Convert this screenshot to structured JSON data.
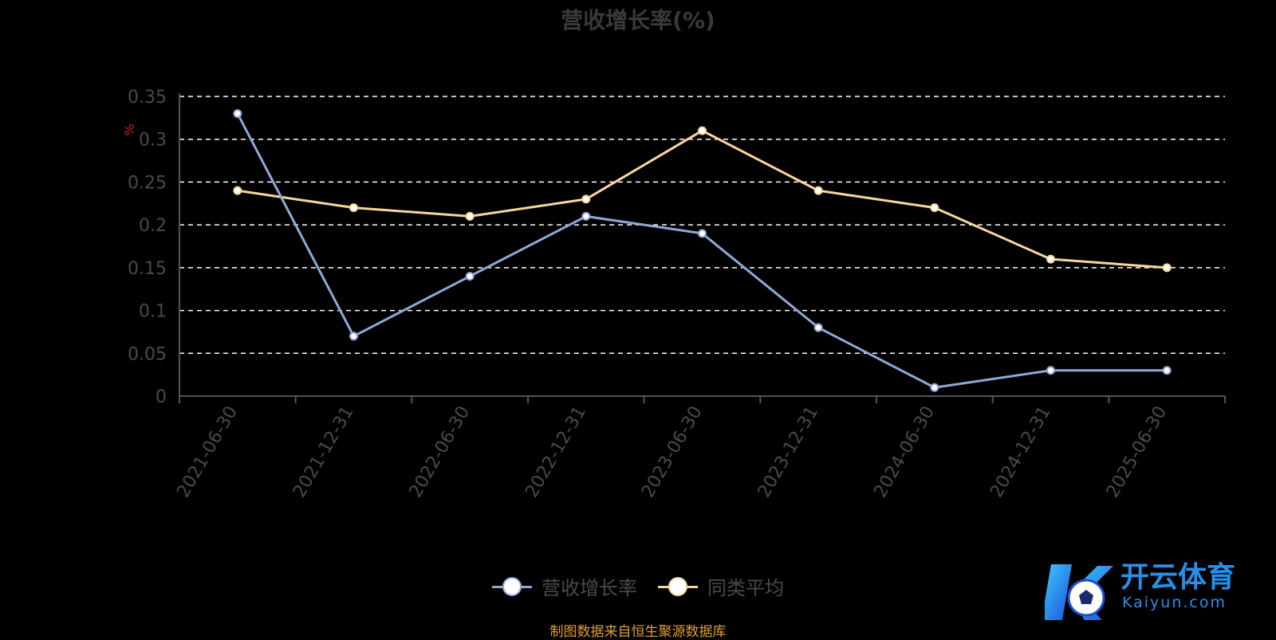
{
  "title": "营收增长率(%)",
  "source": "制图数据来自恒生聚源数据库",
  "logo": {
    "text": "开云体育",
    "sub": "Kaiyun.com"
  },
  "colors": {
    "series1": "#8ea8d8",
    "series2": "#f7d79a",
    "unit": "#cc2222",
    "axis": "#555555",
    "grid": "#ffffff"
  },
  "chart_data": {
    "type": "line",
    "title": "营收增长率(%)",
    "ylabel": "%",
    "xlabel": "",
    "categories": [
      "2021-06-30",
      "2021-12-31",
      "2022-06-30",
      "2022-12-31",
      "2023-06-30",
      "2023-12-31",
      "2024-06-30",
      "2024-12-31",
      "2025-06-30"
    ],
    "yticks": [
      "0",
      "0.05",
      "0.1",
      "0.15",
      "0.2",
      "0.25",
      "0.3",
      "0.35"
    ],
    "ylim": [
      0,
      0.35
    ],
    "grid": true,
    "legend_position": "bottom",
    "series": [
      {
        "name": "营收增长率",
        "values": [
          0.33,
          0.07,
          0.14,
          0.21,
          0.19,
          0.08,
          0.01,
          0.03,
          0.03
        ]
      },
      {
        "name": "同类平均",
        "values": [
          0.24,
          0.22,
          0.21,
          0.23,
          0.31,
          0.24,
          0.22,
          0.16,
          0.15
        ]
      }
    ]
  }
}
